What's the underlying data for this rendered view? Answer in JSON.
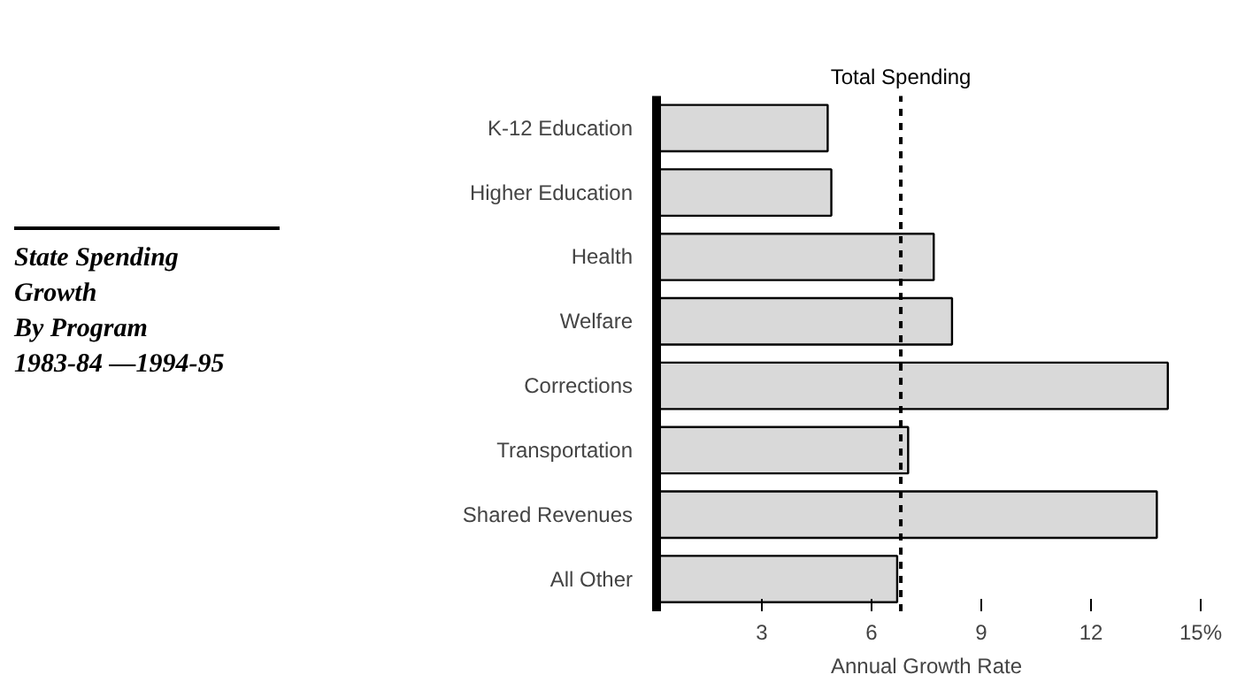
{
  "chart_data": {
    "type": "bar",
    "orientation": "horizontal",
    "title": "State Spending\nGrowth\nBy Program\n1983-84 —1994-95",
    "xlabel": "Annual Growth Rate",
    "categories": [
      "K-12 Education",
      "Higher Education",
      "Health",
      "Welfare",
      "Corrections",
      "Transportation",
      "Shared Revenues",
      "All Other"
    ],
    "values": [
      4.8,
      4.9,
      7.7,
      8.2,
      14.1,
      7.0,
      13.8,
      6.7
    ],
    "color": "#d9d9d9",
    "xlim": [
      0,
      15
    ],
    "xticks": [
      3,
      6,
      9,
      12,
      {
        "value": 15,
        "label": "15%"
      }
    ],
    "ref_lines": [
      {
        "axis": "x",
        "value": 6.8,
        "label": "Total Spending",
        "color": "#000000",
        "line_style": "dashed"
      }
    ],
    "grid": false
  }
}
